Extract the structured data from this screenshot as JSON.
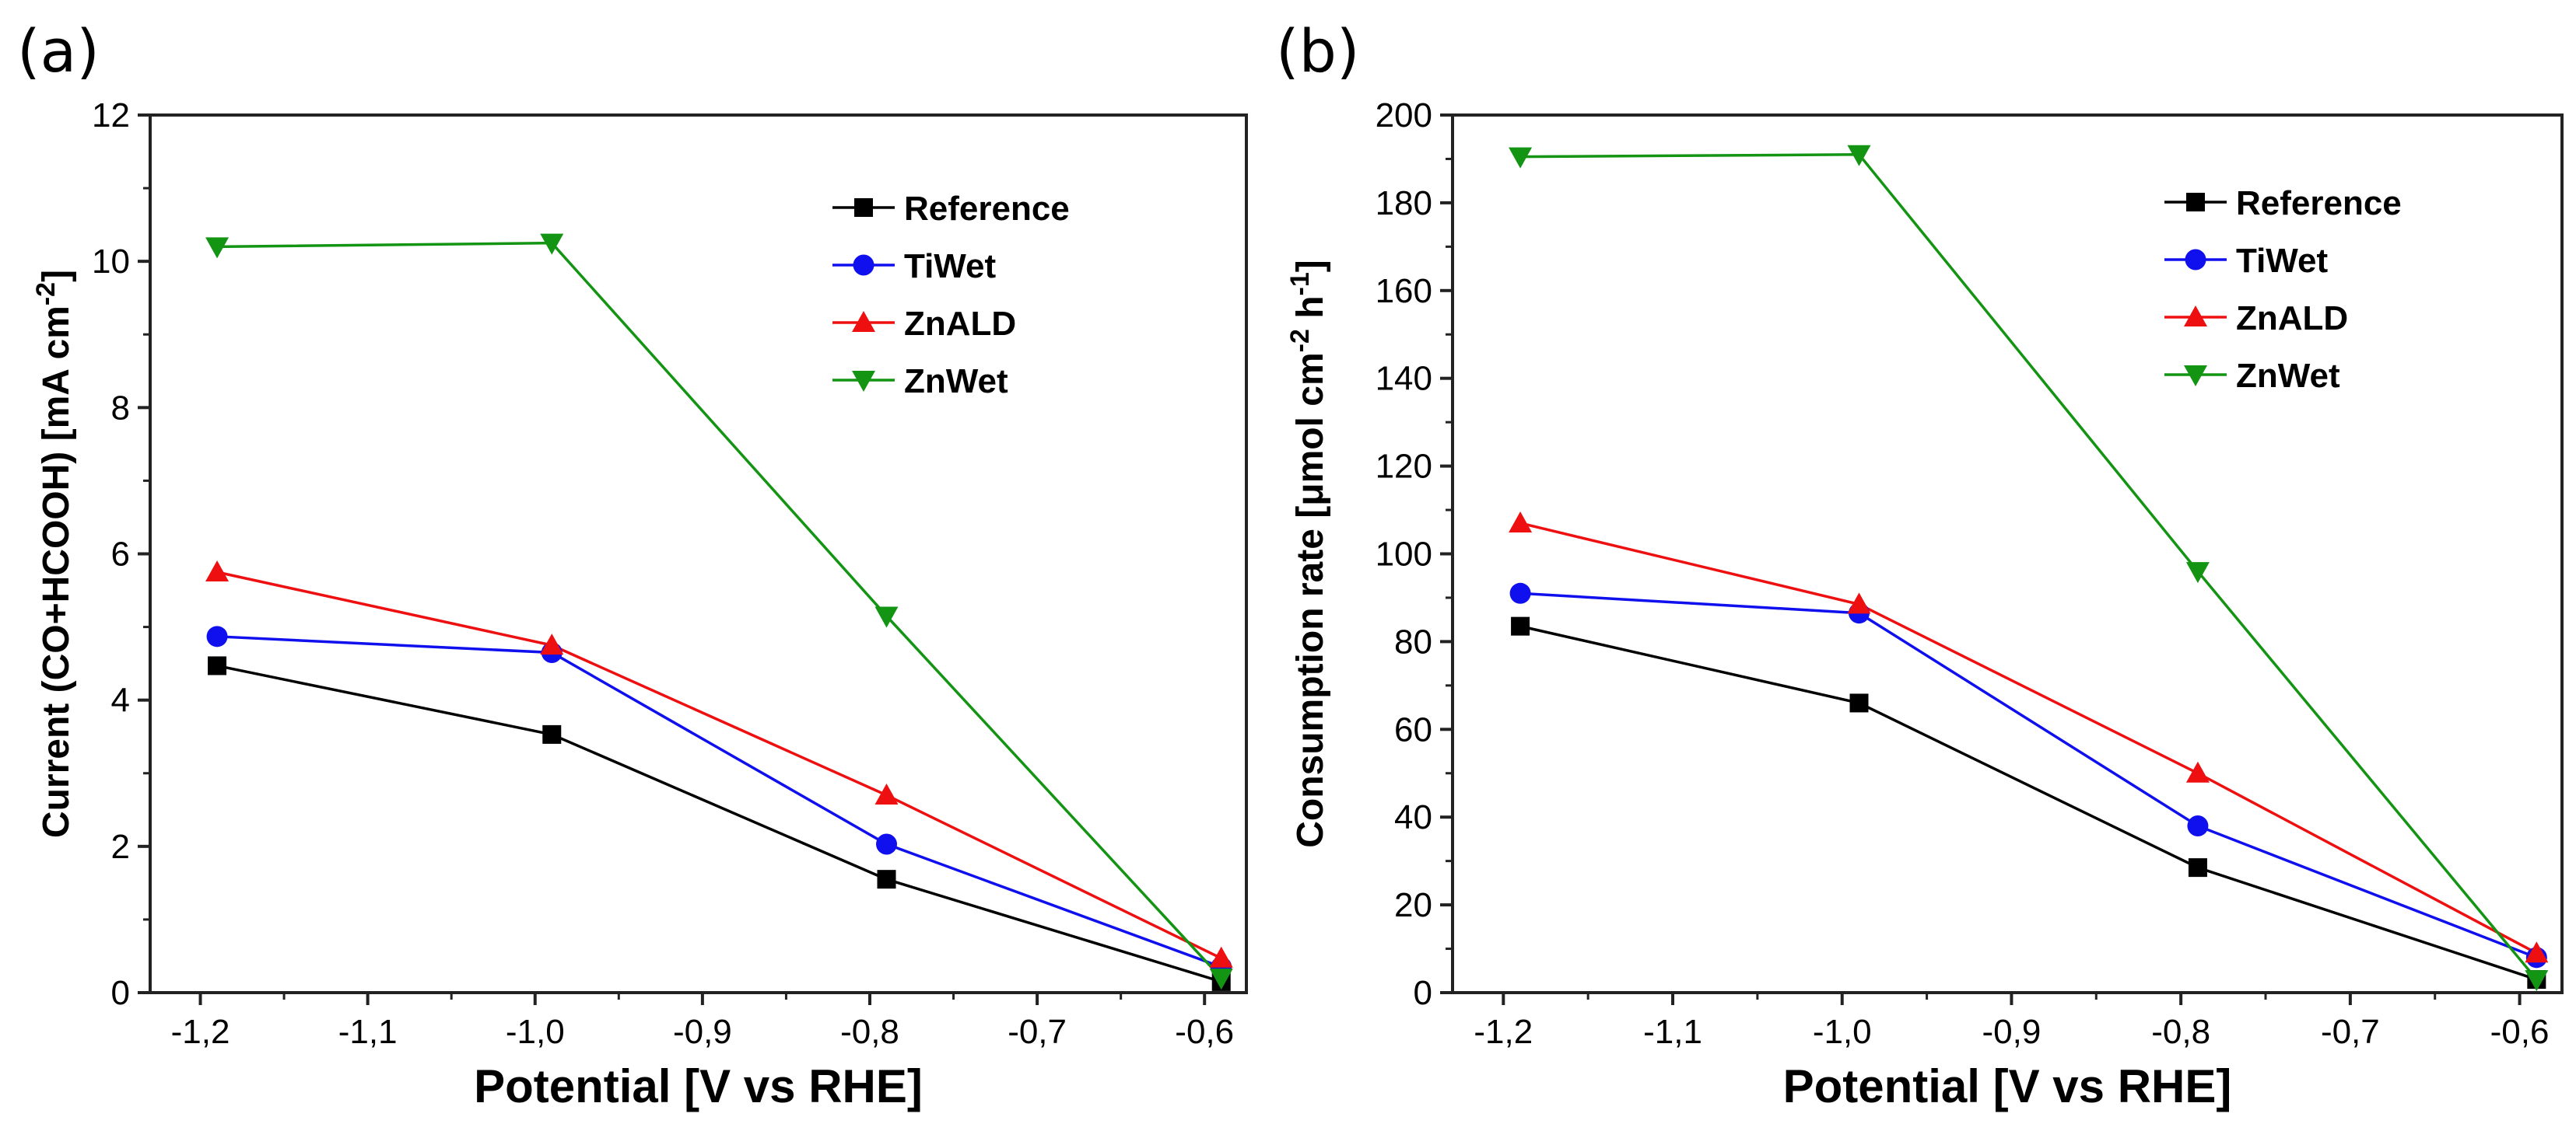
{
  "chart_data": [
    {
      "panel": "(a)",
      "type": "line",
      "xlabel": "Potential [V vs RHE]",
      "ylabel": "Current (CO+HCOOH) [mA cm",
      "ylabel_sup": "-2",
      "ylabel_tail": "]",
      "xlim": [
        -1.23,
        -0.575
      ],
      "ylim": [
        0,
        12
      ],
      "xticks": [
        -1.2,
        -1.1,
        -1.0,
        -0.9,
        -0.8,
        -0.7,
        -0.6
      ],
      "xtick_labels": [
        "-1,2",
        "-1,1",
        "-1,0",
        "-0,9",
        "-0,8",
        "-0,7",
        "-0,6"
      ],
      "yticks": [
        0,
        2,
        4,
        6,
        8,
        10,
        12
      ],
      "ytick_labels": [
        "0",
        "2",
        "4",
        "6",
        "8",
        "10",
        "12"
      ],
      "x": [
        -1.19,
        -0.99,
        -0.79,
        -0.59
      ],
      "legend_position": "top-right",
      "series": [
        {
          "name": "Reference",
          "color": "#000000",
          "marker": "square",
          "values": [
            4.47,
            3.53,
            1.55,
            0.15
          ]
        },
        {
          "name": "TiWet",
          "color": "#1010ee",
          "marker": "circle",
          "values": [
            4.87,
            4.65,
            2.03,
            0.35
          ]
        },
        {
          "name": "ZnALD",
          "color": "#ee1010",
          "marker": "triangle-up",
          "values": [
            5.75,
            4.75,
            2.7,
            0.47
          ]
        },
        {
          "name": "ZnWet",
          "color": "#139413",
          "marker": "triangle-down",
          "values": [
            10.2,
            10.25,
            5.15,
            0.2
          ]
        }
      ]
    },
    {
      "panel": "(b)",
      "type": "line",
      "xlabel": "Potential [V vs RHE]",
      "ylabel": "Consumption rate [μmol cm",
      "ylabel_sup": "-2",
      "ylabel_mid": " h",
      "ylabel_sup2": "-1",
      "ylabel_tail": "]",
      "xlim": [
        -1.23,
        -0.575
      ],
      "ylim": [
        0,
        200
      ],
      "xticks": [
        -1.2,
        -1.1,
        -1.0,
        -0.9,
        -0.8,
        -0.7,
        -0.6
      ],
      "xtick_labels": [
        "-1,2",
        "-1,1",
        "-1,0",
        "-0,9",
        "-0,8",
        "-0,7",
        "-0,6"
      ],
      "yticks": [
        0,
        20,
        40,
        60,
        80,
        100,
        120,
        140,
        160,
        180,
        200
      ],
      "ytick_labels": [
        "0",
        "20",
        "40",
        "60",
        "80",
        "100",
        "120",
        "140",
        "160",
        "180",
        "200"
      ],
      "x": [
        -1.19,
        -0.99,
        -0.79,
        -0.59
      ],
      "legend_position": "top-right",
      "series": [
        {
          "name": "Reference",
          "color": "#000000",
          "marker": "square",
          "values": [
            83.5,
            66,
            28.5,
            3
          ]
        },
        {
          "name": "TiWet",
          "color": "#1010ee",
          "marker": "circle",
          "values": [
            91,
            86.5,
            38,
            8
          ]
        },
        {
          "name": "ZnALD",
          "color": "#ee1010",
          "marker": "triangle-up",
          "values": [
            107,
            88.5,
            50,
            9
          ]
        },
        {
          "name": "ZnWet",
          "color": "#139413",
          "marker": "triangle-down",
          "values": [
            190.5,
            191,
            96,
            3
          ]
        }
      ]
    }
  ]
}
